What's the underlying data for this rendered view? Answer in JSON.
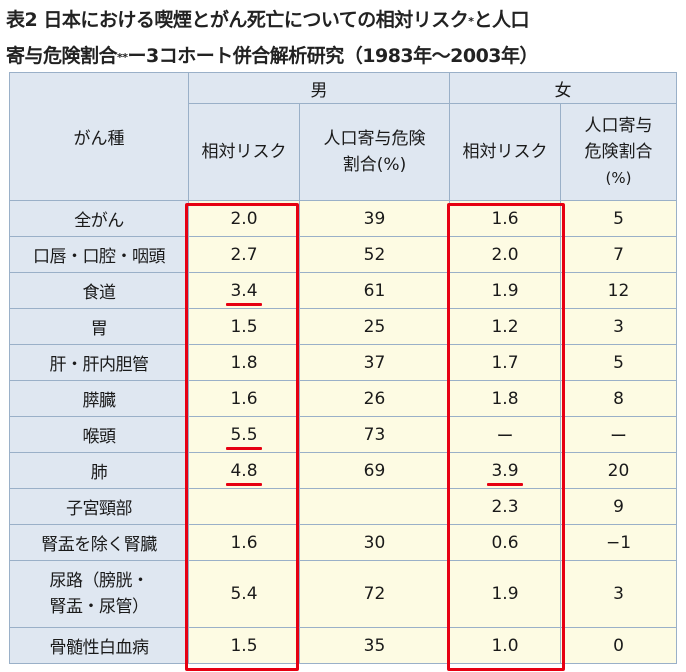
{
  "title": {
    "line1": "表2 日本における喫煙とがん死亡についての相対リスク",
    "mark1": "*",
    "line1_end": "と人口",
    "line2_start": "寄与危険割合",
    "mark2": "**",
    "line2_end": "ー3コホート併合解析研究（1983年～2003年）"
  },
  "headers": {
    "cancer_type": "がん種",
    "male": "男",
    "female": "女",
    "rr": "相対リスク",
    "paf_line1": "人口寄与危険",
    "paf_line2": "割合(%)",
    "paf_f_line1": "人口寄与",
    "paf_f_line2": "危険割合",
    "paf_f_line3": "(%)"
  },
  "rows": [
    {
      "name": "全がん",
      "m_rr": "2.0",
      "m_paf": "39",
      "f_rr": "1.6",
      "f_paf": "5"
    },
    {
      "name": "口唇・口腔・咽頭",
      "m_rr": "2.7",
      "m_paf": "52",
      "f_rr": "2.0",
      "f_paf": "7"
    },
    {
      "name": "食道",
      "m_rr": "3.4",
      "m_paf": "61",
      "f_rr": "1.9",
      "f_paf": "12"
    },
    {
      "name": "胃",
      "m_rr": "1.5",
      "m_paf": "25",
      "f_rr": "1.2",
      "f_paf": "3"
    },
    {
      "name": "肝・肝内胆管",
      "m_rr": "1.8",
      "m_paf": "37",
      "f_rr": "1.7",
      "f_paf": "5"
    },
    {
      "name": "膵臓",
      "m_rr": "1.6",
      "m_paf": "26",
      "f_rr": "1.8",
      "f_paf": "8"
    },
    {
      "name": "喉頭",
      "m_rr": "5.5",
      "m_paf": "73",
      "f_rr": "ー",
      "f_paf": "ー"
    },
    {
      "name": "肺",
      "m_rr": "4.8",
      "m_paf": "69",
      "f_rr": "3.9",
      "f_paf": "20"
    },
    {
      "name": "子宮頸部",
      "m_rr": "",
      "m_paf": "",
      "f_rr": "2.3",
      "f_paf": "9"
    },
    {
      "name": "腎盂を除く腎臓",
      "m_rr": "1.6",
      "m_paf": "30",
      "f_rr": "0.6",
      "f_paf": "−1"
    },
    {
      "name_line1": "尿路（膀胱・",
      "name_line2": "腎盂・尿管）",
      "m_rr": "5.4",
      "m_paf": "72",
      "f_rr": "1.9",
      "f_paf": "3"
    },
    {
      "name": "骨髄性白血病",
      "m_rr": "1.5",
      "m_paf": "35",
      "f_rr": "1.0",
      "f_paf": "0"
    }
  ],
  "highlight_color": "#e60012"
}
